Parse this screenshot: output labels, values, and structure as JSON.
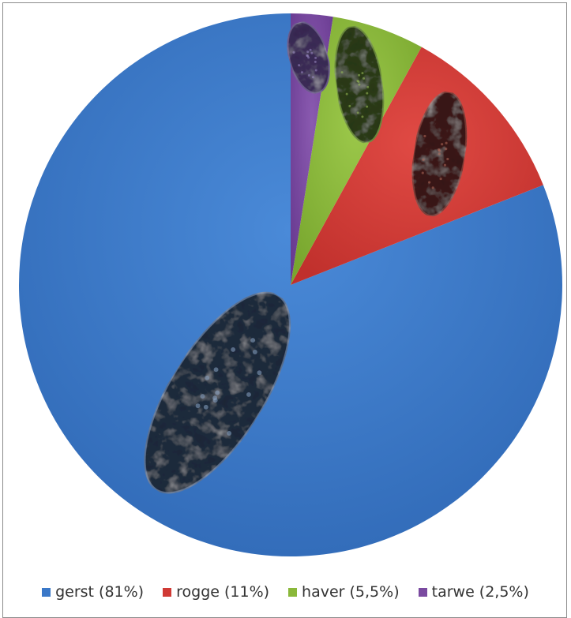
{
  "chart_data": {
    "type": "pie",
    "title": "",
    "categories": [
      "gerst",
      "rogge",
      "haver",
      "tarwe"
    ],
    "values": [
      81,
      11,
      5.5,
      2.5
    ],
    "legend_labels": [
      "gerst (81%)",
      "rogge (11%)",
      "haver (5,5%)",
      "tarwe (2,5%)"
    ],
    "colors": [
      "#3a78c8",
      "#d03a35",
      "#8ab83a",
      "#7a4aa0"
    ],
    "start_angle_deg": 0,
    "direction": "counterclockwise",
    "legend_position": "bottom",
    "slice_images": [
      "dark-blue-grain-image",
      "dark-red-grain-image",
      "dark-green-grain-image",
      "dark-purple-grain-image"
    ]
  }
}
